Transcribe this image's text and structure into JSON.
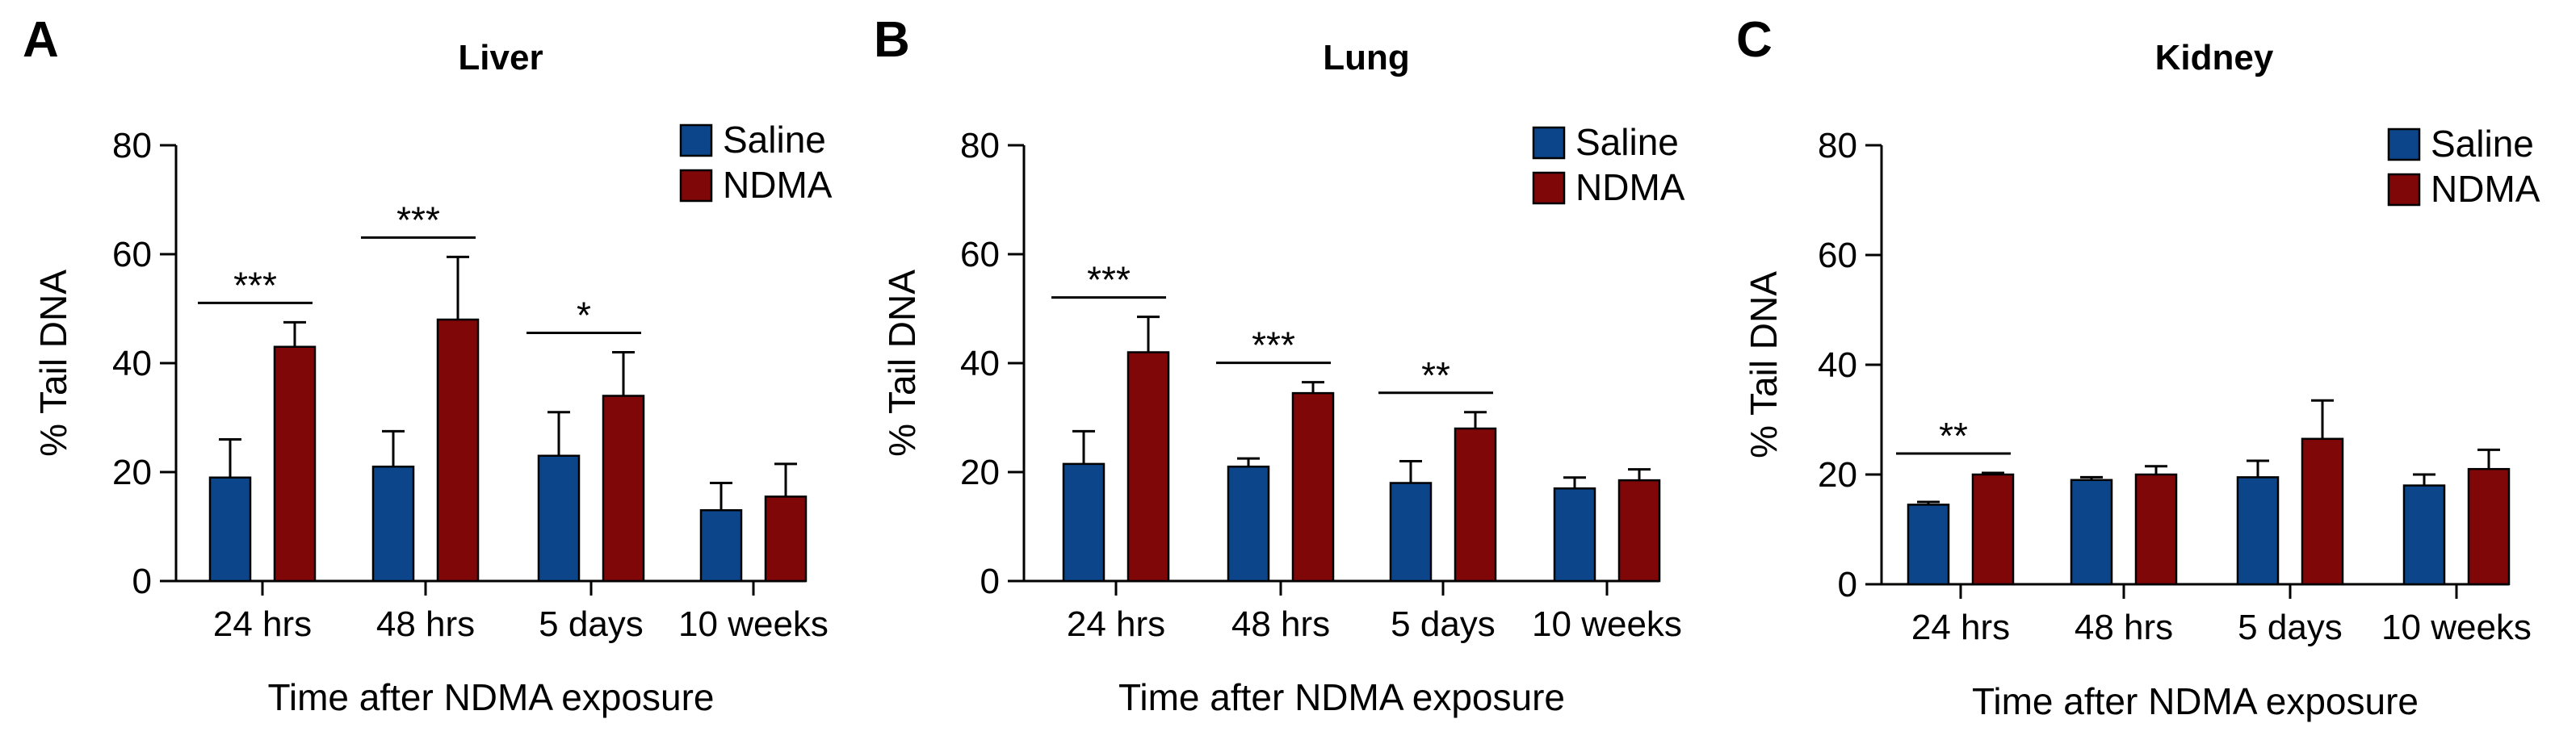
{
  "chart_data": [
    {
      "panel": "A",
      "type": "bar",
      "title": "Liver",
      "xlabel": "Time after NDMA exposure",
      "ylabel": "% Tail DNA",
      "ylim": [
        0,
        80
      ],
      "yticks": [
        0,
        20,
        40,
        60,
        80
      ],
      "categories": [
        "24 hrs",
        "48 hrs",
        "5 days",
        "10 weeks"
      ],
      "legend": "top-right",
      "series": [
        {
          "name": "Saline",
          "color": "#0c4589",
          "values": [
            19,
            21,
            23,
            13
          ],
          "errors": [
            7,
            6.5,
            8,
            5
          ]
        },
        {
          "name": "NDMA",
          "color": "#7f0707",
          "values": [
            43,
            48,
            34,
            15.5
          ],
          "errors": [
            4.5,
            11.5,
            8,
            6
          ]
        }
      ],
      "significance": [
        "***",
        "***",
        "*",
        ""
      ]
    },
    {
      "panel": "B",
      "type": "bar",
      "title": "Lung",
      "xlabel": "Time after NDMA exposure",
      "ylabel": "% Tail DNA",
      "ylim": [
        0,
        80
      ],
      "yticks": [
        0,
        20,
        40,
        60,
        80
      ],
      "categories": [
        "24 hrs",
        "48 hrs",
        "5 days",
        "10 weeks"
      ],
      "legend": "top-right",
      "series": [
        {
          "name": "Saline",
          "color": "#0c4589",
          "values": [
            21.5,
            21,
            18,
            17
          ],
          "errors": [
            6,
            1.5,
            4,
            2
          ]
        },
        {
          "name": "NDMA",
          "color": "#7f0707",
          "values": [
            42,
            34.5,
            28,
            18.5
          ],
          "errors": [
            6.5,
            2,
            3,
            2
          ]
        }
      ],
      "significance": [
        "***",
        "***",
        "**",
        ""
      ]
    },
    {
      "panel": "C",
      "type": "bar",
      "title": "Kidney",
      "xlabel": "Time after NDMA exposure",
      "ylabel": "% Tail DNA",
      "ylim": [
        0,
        80
      ],
      "yticks": [
        0,
        20,
        40,
        60,
        80
      ],
      "categories": [
        "24 hrs",
        "48 hrs",
        "5 days",
        "10 weeks"
      ],
      "legend": "top-right",
      "series": [
        {
          "name": "Saline",
          "color": "#0c4589",
          "values": [
            14.5,
            19,
            19.5,
            18
          ],
          "errors": [
            0.5,
            0.5,
            3,
            2
          ]
        },
        {
          "name": "NDMA",
          "color": "#7f0707",
          "values": [
            20,
            20,
            26.5,
            21
          ],
          "errors": [
            0.3,
            1.5,
            7,
            3.5
          ]
        }
      ],
      "significance": [
        "**",
        "",
        "",
        ""
      ]
    }
  ]
}
